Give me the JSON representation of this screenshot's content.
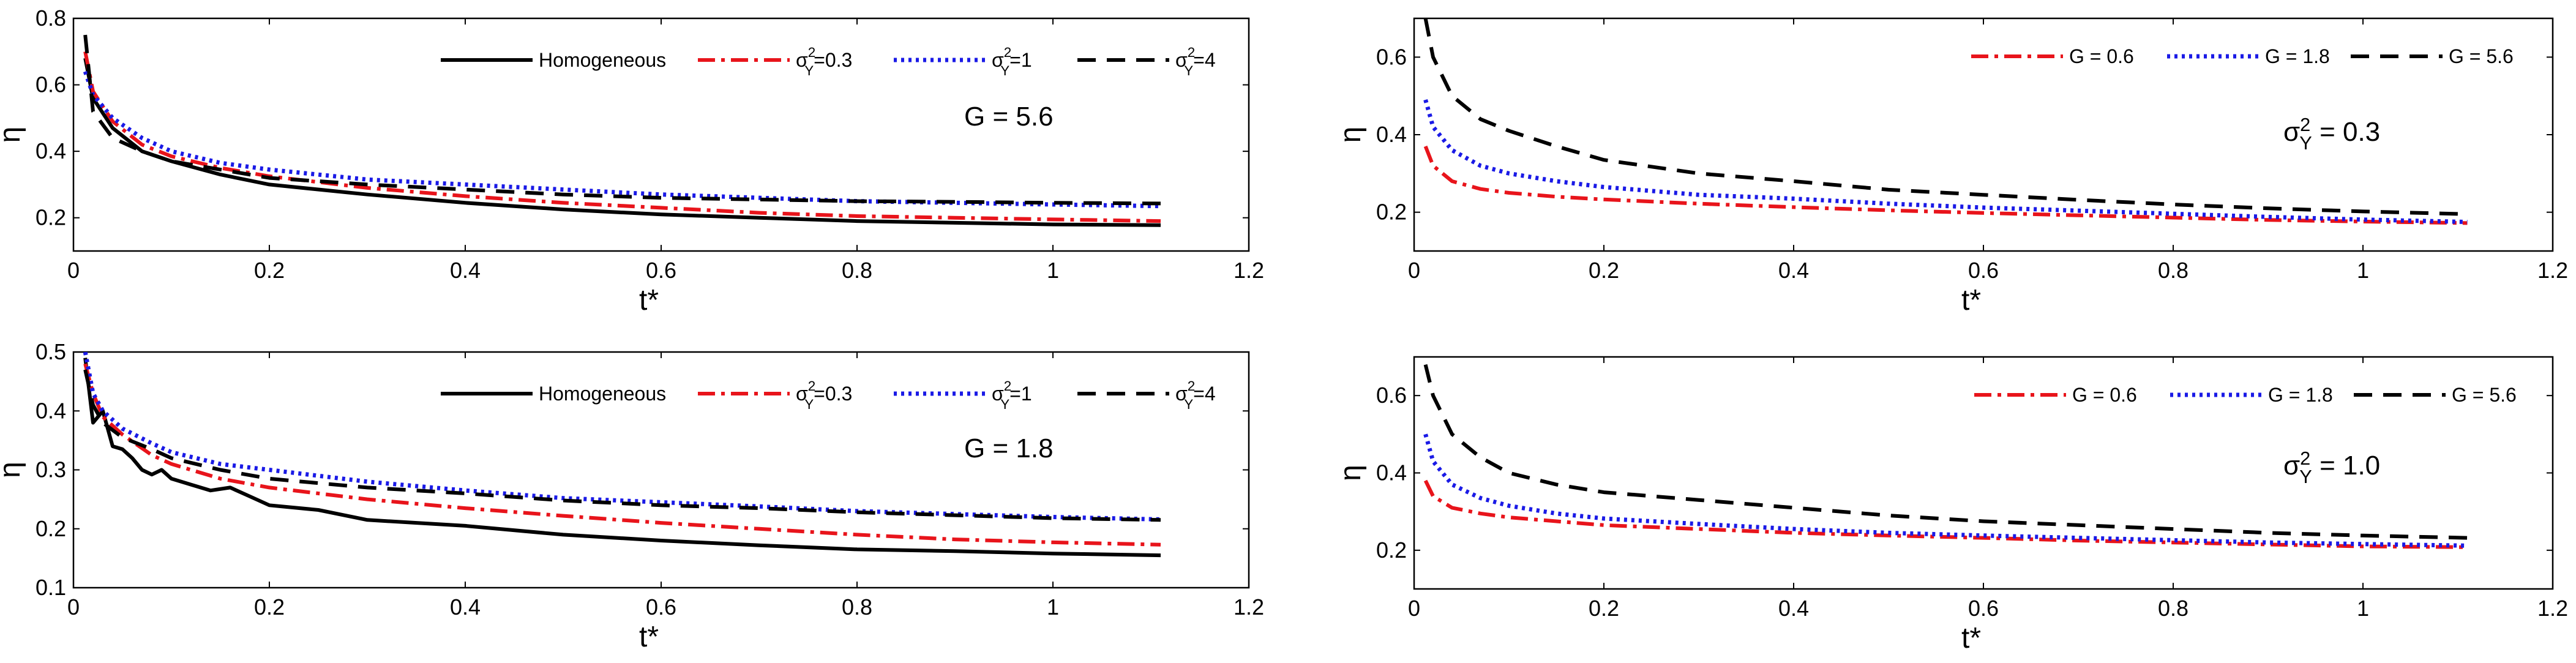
{
  "colors": {
    "homogeneous": "#000000",
    "sigma_0_3": "#e8141b",
    "sigma_1": "#1a1ae6",
    "sigma_4": "#000000",
    "G_0_6": "#e8141b",
    "G_1_8": "#1a1ae6",
    "G_5_6": "#000000"
  },
  "chart_data": [
    {
      "id": "top-left",
      "type": "line",
      "xlabel": "t*",
      "ylabel": "η",
      "xlim": [
        0,
        1.2
      ],
      "ylim": [
        0.1,
        0.8
      ],
      "xticks": [
        "0",
        "0.2",
        "0.4",
        "0.6",
        "0.8",
        "1",
        "1.2"
      ],
      "yticks": [
        "0.2",
        "0.4",
        "0.6",
        "0.8"
      ],
      "annotation": {
        "base": "G = 5.6",
        "sup": "",
        "sub": ""
      },
      "legend_position": "top-right",
      "series": [
        {
          "name": "Homogeneous",
          "base": "Homogeneous",
          "sup": "",
          "sub": "",
          "tail": "",
          "color_key": "homogeneous",
          "dash": "solid",
          "x": [
            0.012,
            0.02,
            0.04,
            0.07,
            0.1,
            0.15,
            0.2,
            0.3,
            0.4,
            0.5,
            0.6,
            0.7,
            0.8,
            0.9,
            1.0,
            1.11
          ],
          "y": [
            0.68,
            0.56,
            0.47,
            0.4,
            0.37,
            0.33,
            0.3,
            0.27,
            0.245,
            0.225,
            0.21,
            0.2,
            0.19,
            0.185,
            0.18,
            0.178
          ]
        },
        {
          "name": "σY2=0.3",
          "base": "σ",
          "sup": "2",
          "sub": "Y",
          "tail": "=0.3",
          "color_key": "sigma_0_3",
          "dash": "dashdot",
          "x": [
            0.012,
            0.02,
            0.04,
            0.07,
            0.1,
            0.15,
            0.2,
            0.3,
            0.4,
            0.5,
            0.6,
            0.7,
            0.8,
            0.9,
            1.0,
            1.11
          ],
          "y": [
            0.7,
            0.58,
            0.49,
            0.42,
            0.385,
            0.35,
            0.325,
            0.29,
            0.265,
            0.245,
            0.23,
            0.215,
            0.205,
            0.2,
            0.195,
            0.19
          ]
        },
        {
          "name": "σY2=1",
          "base": "σ",
          "sup": "2",
          "sub": "Y",
          "tail": "=1",
          "color_key": "sigma_1",
          "dash": "dotted",
          "x": [
            0.012,
            0.02,
            0.04,
            0.07,
            0.1,
            0.15,
            0.2,
            0.3,
            0.4,
            0.5,
            0.6,
            0.7,
            0.8,
            0.9,
            1.0,
            1.11
          ],
          "y": [
            0.64,
            0.57,
            0.5,
            0.44,
            0.4,
            0.365,
            0.345,
            0.315,
            0.3,
            0.285,
            0.27,
            0.26,
            0.25,
            0.245,
            0.24,
            0.235
          ]
        },
        {
          "name": "σY2=4",
          "base": "σ",
          "sup": "2",
          "sub": "Y",
          "tail": "=4",
          "color_key": "sigma_4",
          "dash": "dashed",
          "x": [
            0.012,
            0.02,
            0.04,
            0.07,
            0.1,
            0.15,
            0.2,
            0.3,
            0.4,
            0.5,
            0.6,
            0.7,
            0.8,
            0.9,
            1.0,
            1.11
          ],
          "y": [
            0.75,
            0.52,
            0.44,
            0.4,
            0.37,
            0.345,
            0.32,
            0.3,
            0.285,
            0.27,
            0.26,
            0.255,
            0.25,
            0.248,
            0.245,
            0.243
          ]
        }
      ]
    },
    {
      "id": "bottom-left",
      "type": "line",
      "xlabel": "t*",
      "ylabel": "η",
      "xlim": [
        0,
        1.2
      ],
      "ylim": [
        0.1,
        0.5
      ],
      "xticks": [
        "0",
        "0.2",
        "0.4",
        "0.6",
        "0.8",
        "1",
        "1.2"
      ],
      "yticks": [
        "0.1",
        "0.2",
        "0.3",
        "0.4",
        "0.5"
      ],
      "annotation": {
        "base": "G = 1.8",
        "sup": "",
        "sub": ""
      },
      "legend_position": "top-right",
      "series": [
        {
          "name": "Homogeneous",
          "base": "Homogeneous",
          "sup": "",
          "sub": "",
          "tail": "",
          "color_key": "homogeneous",
          "dash": "solid",
          "x": [
            0.012,
            0.02,
            0.03,
            0.04,
            0.05,
            0.06,
            0.07,
            0.08,
            0.09,
            0.1,
            0.12,
            0.14,
            0.16,
            0.18,
            0.2,
            0.25,
            0.3,
            0.4,
            0.5,
            0.6,
            0.7,
            0.8,
            0.9,
            1.0,
            1.11
          ],
          "y": [
            0.49,
            0.38,
            0.4,
            0.34,
            0.335,
            0.32,
            0.3,
            0.292,
            0.3,
            0.285,
            0.275,
            0.265,
            0.27,
            0.255,
            0.24,
            0.232,
            0.215,
            0.205,
            0.19,
            0.18,
            0.172,
            0.165,
            0.162,
            0.158,
            0.155
          ]
        },
        {
          "name": "σY2=0.3",
          "base": "σ",
          "sup": "2",
          "sub": "Y",
          "tail": "=0.3",
          "color_key": "sigma_0_3",
          "dash": "dashdot",
          "x": [
            0.012,
            0.02,
            0.03,
            0.05,
            0.08,
            0.1,
            0.15,
            0.2,
            0.3,
            0.4,
            0.5,
            0.6,
            0.7,
            0.8,
            0.9,
            1.0,
            1.11
          ],
          "y": [
            0.48,
            0.43,
            0.39,
            0.36,
            0.325,
            0.31,
            0.285,
            0.27,
            0.25,
            0.235,
            0.222,
            0.21,
            0.2,
            0.19,
            0.182,
            0.177,
            0.173
          ]
        },
        {
          "name": "σY2=1",
          "base": "σ",
          "sup": "2",
          "sub": "Y",
          "tail": "=1",
          "color_key": "sigma_1",
          "dash": "dotted",
          "x": [
            0.012,
            0.02,
            0.03,
            0.05,
            0.08,
            0.1,
            0.15,
            0.2,
            0.3,
            0.4,
            0.5,
            0.6,
            0.7,
            0.8,
            0.9,
            1.0,
            1.11
          ],
          "y": [
            0.5,
            0.43,
            0.4,
            0.37,
            0.345,
            0.33,
            0.31,
            0.3,
            0.28,
            0.265,
            0.252,
            0.245,
            0.238,
            0.23,
            0.225,
            0.22,
            0.216
          ]
        },
        {
          "name": "σY2=4",
          "base": "σ",
          "sup": "2",
          "sub": "Y",
          "tail": "=4",
          "color_key": "sigma_4",
          "dash": "dashed",
          "x": [
            0.012,
            0.02,
            0.03,
            0.05,
            0.08,
            0.1,
            0.15,
            0.2,
            0.3,
            0.4,
            0.5,
            0.6,
            0.7,
            0.8,
            0.9,
            1.0,
            1.11
          ],
          "y": [
            0.47,
            0.41,
            0.38,
            0.355,
            0.335,
            0.32,
            0.3,
            0.285,
            0.27,
            0.26,
            0.248,
            0.24,
            0.235,
            0.228,
            0.223,
            0.218,
            0.215
          ]
        }
      ]
    },
    {
      "id": "top-right",
      "type": "line",
      "xlabel": "t*",
      "ylabel": "η",
      "xlim": [
        0,
        1.2
      ],
      "ylim": [
        0.1,
        0.7
      ],
      "xticks": [
        "0",
        "0.2",
        "0.4",
        "0.6",
        "0.8",
        "1",
        "1.2"
      ],
      "yticks": [
        "0.2",
        "0.4",
        "0.6"
      ],
      "annotation": {
        "base": "σ",
        "sup": "2",
        "sub": "Y",
        "tail": " = 0.3"
      },
      "legend_position": "top-right",
      "series": [
        {
          "name": "G = 0.6",
          "base": "G = 0.6",
          "sup": "",
          "sub": "",
          "tail": "",
          "color_key": "G_0_6",
          "dash": "dashdot",
          "x": [
            0.012,
            0.02,
            0.04,
            0.07,
            0.1,
            0.15,
            0.2,
            0.3,
            0.4,
            0.5,
            0.6,
            0.7,
            0.8,
            0.9,
            1.0,
            1.11
          ],
          "y": [
            0.37,
            0.32,
            0.28,
            0.26,
            0.25,
            0.24,
            0.233,
            0.222,
            0.213,
            0.205,
            0.198,
            0.192,
            0.186,
            0.18,
            0.176,
            0.172
          ]
        },
        {
          "name": "G = 1.8",
          "base": "G = 1.8",
          "sup": "",
          "sub": "",
          "tail": "",
          "color_key": "G_1_8",
          "dash": "dotted",
          "x": [
            0.012,
            0.02,
            0.04,
            0.07,
            0.1,
            0.15,
            0.2,
            0.3,
            0.4,
            0.5,
            0.6,
            0.7,
            0.8,
            0.9,
            1.0,
            1.11
          ],
          "y": [
            0.49,
            0.42,
            0.36,
            0.32,
            0.3,
            0.28,
            0.265,
            0.245,
            0.235,
            0.222,
            0.212,
            0.204,
            0.196,
            0.188,
            0.181,
            0.175
          ]
        },
        {
          "name": "G = 5.6",
          "base": "G = 5.6",
          "sup": "",
          "sub": "",
          "tail": "",
          "color_key": "G_5_6",
          "dash": "dashed",
          "x": [
            0.012,
            0.02,
            0.04,
            0.07,
            0.1,
            0.15,
            0.2,
            0.3,
            0.4,
            0.5,
            0.6,
            0.7,
            0.8,
            0.9,
            1.0,
            1.11
          ],
          "y": [
            0.7,
            0.6,
            0.5,
            0.44,
            0.41,
            0.37,
            0.335,
            0.3,
            0.28,
            0.258,
            0.245,
            0.232,
            0.22,
            0.21,
            0.202,
            0.195
          ]
        }
      ]
    },
    {
      "id": "bottom-right",
      "type": "line",
      "xlabel": "t*",
      "ylabel": "η",
      "xlim": [
        0,
        1.2
      ],
      "ylim": [
        0.1,
        0.7
      ],
      "xticks": [
        "0",
        "0.2",
        "0.4",
        "0.6",
        "0.8",
        "1",
        "1.2"
      ],
      "yticks": [
        "0.2",
        "0.4",
        "0.6"
      ],
      "annotation": {
        "base": "σ",
        "sup": "2",
        "sub": "Y",
        "tail": " = 1.0"
      },
      "legend_position": "top-right",
      "series": [
        {
          "name": "G = 0.6",
          "base": "G = 0.6",
          "sup": "",
          "sub": "",
          "tail": "",
          "color_key": "G_0_6",
          "dash": "dashdot",
          "x": [
            0.012,
            0.02,
            0.04,
            0.07,
            0.1,
            0.15,
            0.2,
            0.3,
            0.4,
            0.5,
            0.6,
            0.7,
            0.8,
            0.9,
            1.0,
            1.11
          ],
          "y": [
            0.38,
            0.34,
            0.31,
            0.295,
            0.285,
            0.275,
            0.265,
            0.255,
            0.245,
            0.238,
            0.232,
            0.225,
            0.22,
            0.215,
            0.21,
            0.208
          ]
        },
        {
          "name": "G = 1.8",
          "base": "G = 1.8",
          "sup": "",
          "sub": "",
          "tail": "",
          "color_key": "G_1_8",
          "dash": "dotted",
          "x": [
            0.012,
            0.02,
            0.04,
            0.07,
            0.1,
            0.15,
            0.2,
            0.3,
            0.4,
            0.5,
            0.6,
            0.7,
            0.8,
            0.9,
            1.0,
            1.11
          ],
          "y": [
            0.5,
            0.43,
            0.37,
            0.335,
            0.315,
            0.295,
            0.282,
            0.268,
            0.255,
            0.245,
            0.238,
            0.232,
            0.226,
            0.22,
            0.216,
            0.212
          ]
        },
        {
          "name": "G = 5.6",
          "base": "G = 5.6",
          "sup": "",
          "sub": "",
          "tail": "",
          "color_key": "G_5_6",
          "dash": "dashed",
          "x": [
            0.012,
            0.02,
            0.04,
            0.07,
            0.1,
            0.15,
            0.2,
            0.3,
            0.4,
            0.5,
            0.6,
            0.7,
            0.8,
            0.9,
            1.0,
            1.11
          ],
          "y": [
            0.68,
            0.6,
            0.5,
            0.44,
            0.4,
            0.37,
            0.35,
            0.33,
            0.31,
            0.29,
            0.275,
            0.265,
            0.255,
            0.245,
            0.238,
            0.232
          ]
        }
      ]
    }
  ]
}
